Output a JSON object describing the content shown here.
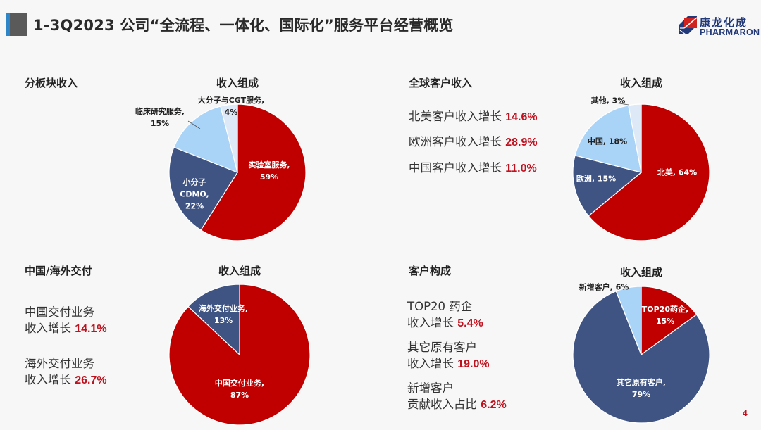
{
  "header": {
    "title": "1-3Q2023 公司“全流程、一体化、国际化”服务平台经营概览",
    "accent_color": "#2e86c8",
    "block_color": "#5a5a5a"
  },
  "logo": {
    "cn": "康龙化成",
    "en": "PHARMARON",
    "color": "#233a7a",
    "mark_red": "#d0231f"
  },
  "colors": {
    "red": "#c00000",
    "navy": "#3f5483",
    "light_blue": "#a9d4f7",
    "pale_blue": "#dde9f7",
    "highlight": "#c0121e"
  },
  "sections": {
    "segment": {
      "title": "分板块收入",
      "chart_title": "收入组成"
    },
    "global": {
      "title": "全球客户收入",
      "chart_title": "收入组成",
      "stats": [
        {
          "label": "北美客户收入增长",
          "value": "14.6%"
        },
        {
          "label": "欧洲客户收入增长",
          "value": "28.9%"
        },
        {
          "label": "中国客户收入增长",
          "value": "11.0%"
        }
      ]
    },
    "delivery": {
      "title": "中国/海外交付",
      "chart_title": "收入组成",
      "stats": [
        {
          "line1": "中国交付业务",
          "label": "收入增长",
          "value": "14.1%"
        },
        {
          "line1": "海外交付业务",
          "label": "收入增长",
          "value": "26.7%"
        }
      ]
    },
    "customers": {
      "title": "客户构成",
      "chart_title": "收入组成",
      "stats": [
        {
          "line1": "TOP20 药企",
          "label": "收入增长",
          "value": "5.4%"
        },
        {
          "line1": "其它原有客户",
          "label": "收入增长",
          "value": "19.0%"
        },
        {
          "line1": "新增客户",
          "label": "贡献收入占比",
          "value": "6.2%"
        }
      ]
    }
  },
  "chart_data": [
    {
      "type": "pie",
      "title": "收入组成",
      "section": "分板块收入",
      "categories": [
        "实验室服务",
        "小分子CDMO",
        "临床研究服务",
        "大分子与CGT服务"
      ],
      "values": [
        59,
        22,
        15,
        4
      ],
      "unit": "%",
      "labels": [
        "实验室服务,\n59%",
        "小分子\nCDMO,\n22%",
        "临床研究服务,\n15%",
        "大分子与CGT服务,\n4%"
      ],
      "colors": [
        "#c00000",
        "#3f5483",
        "#a9d4f7",
        "#dde9f7"
      ]
    },
    {
      "type": "pie",
      "title": "收入组成",
      "section": "全球客户收入",
      "categories": [
        "北美",
        "欧洲",
        "中国",
        "其他"
      ],
      "values": [
        64,
        15,
        18,
        3
      ],
      "unit": "%",
      "labels": [
        "北美, 64%",
        "欧洲, 15%",
        "中国, 18%",
        "其他, 3%"
      ],
      "colors": [
        "#c00000",
        "#3f5483",
        "#a9d4f7",
        "#dde9f7"
      ]
    },
    {
      "type": "pie",
      "title": "收入组成",
      "section": "中国/海外交付",
      "categories": [
        "中国交付业务",
        "海外交付业务"
      ],
      "values": [
        87,
        13
      ],
      "unit": "%",
      "labels": [
        "中国交付业务,\n87%",
        "海外交付业务,\n13%"
      ],
      "colors": [
        "#c00000",
        "#3f5483"
      ]
    },
    {
      "type": "pie",
      "title": "收入组成",
      "section": "客户构成",
      "categories": [
        "TOP20药企",
        "其它原有客户",
        "新增客户"
      ],
      "values": [
        15,
        79,
        6
      ],
      "unit": "%",
      "labels": [
        "TOP20药企,\n15%",
        "其它原有客户,\n79%",
        "新增客户, 6%"
      ],
      "colors": [
        "#c00000",
        "#3f5483",
        "#a9d4f7"
      ]
    }
  ],
  "page_number": "4"
}
